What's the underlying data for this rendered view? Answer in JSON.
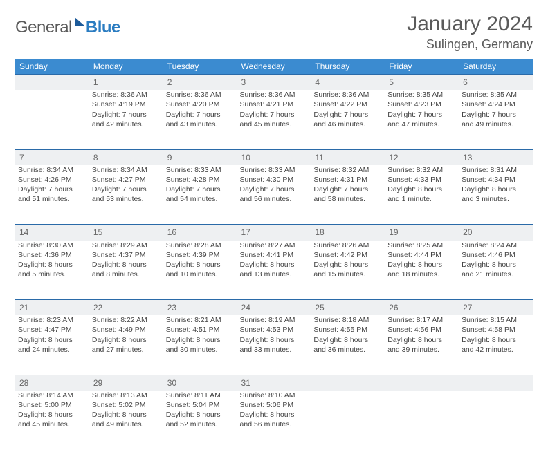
{
  "logo": {
    "general": "General",
    "blue": "Blue"
  },
  "title": "January 2024",
  "location": "Sulingen, Germany",
  "colors": {
    "header_bg": "#3b8bd0",
    "header_text": "#ffffff",
    "daynum_bg": "#eef0f2",
    "border": "#2a6aa8",
    "text": "#444444",
    "logo_gray": "#5a5a5a",
    "logo_blue": "#2a7cc1"
  },
  "weekdays": [
    "Sunday",
    "Monday",
    "Tuesday",
    "Wednesday",
    "Thursday",
    "Friday",
    "Saturday"
  ],
  "weeks": [
    {
      "nums": [
        "",
        "1",
        "2",
        "3",
        "4",
        "5",
        "6"
      ],
      "cells": [
        [],
        [
          "Sunrise: 8:36 AM",
          "Sunset: 4:19 PM",
          "Daylight: 7 hours",
          "and 42 minutes."
        ],
        [
          "Sunrise: 8:36 AM",
          "Sunset: 4:20 PM",
          "Daylight: 7 hours",
          "and 43 minutes."
        ],
        [
          "Sunrise: 8:36 AM",
          "Sunset: 4:21 PM",
          "Daylight: 7 hours",
          "and 45 minutes."
        ],
        [
          "Sunrise: 8:36 AM",
          "Sunset: 4:22 PM",
          "Daylight: 7 hours",
          "and 46 minutes."
        ],
        [
          "Sunrise: 8:35 AM",
          "Sunset: 4:23 PM",
          "Daylight: 7 hours",
          "and 47 minutes."
        ],
        [
          "Sunrise: 8:35 AM",
          "Sunset: 4:24 PM",
          "Daylight: 7 hours",
          "and 49 minutes."
        ]
      ]
    },
    {
      "nums": [
        "7",
        "8",
        "9",
        "10",
        "11",
        "12",
        "13"
      ],
      "cells": [
        [
          "Sunrise: 8:34 AM",
          "Sunset: 4:26 PM",
          "Daylight: 7 hours",
          "and 51 minutes."
        ],
        [
          "Sunrise: 8:34 AM",
          "Sunset: 4:27 PM",
          "Daylight: 7 hours",
          "and 53 minutes."
        ],
        [
          "Sunrise: 8:33 AM",
          "Sunset: 4:28 PM",
          "Daylight: 7 hours",
          "and 54 minutes."
        ],
        [
          "Sunrise: 8:33 AM",
          "Sunset: 4:30 PM",
          "Daylight: 7 hours",
          "and 56 minutes."
        ],
        [
          "Sunrise: 8:32 AM",
          "Sunset: 4:31 PM",
          "Daylight: 7 hours",
          "and 58 minutes."
        ],
        [
          "Sunrise: 8:32 AM",
          "Sunset: 4:33 PM",
          "Daylight: 8 hours",
          "and 1 minute."
        ],
        [
          "Sunrise: 8:31 AM",
          "Sunset: 4:34 PM",
          "Daylight: 8 hours",
          "and 3 minutes."
        ]
      ]
    },
    {
      "nums": [
        "14",
        "15",
        "16",
        "17",
        "18",
        "19",
        "20"
      ],
      "cells": [
        [
          "Sunrise: 8:30 AM",
          "Sunset: 4:36 PM",
          "Daylight: 8 hours",
          "and 5 minutes."
        ],
        [
          "Sunrise: 8:29 AM",
          "Sunset: 4:37 PM",
          "Daylight: 8 hours",
          "and 8 minutes."
        ],
        [
          "Sunrise: 8:28 AM",
          "Sunset: 4:39 PM",
          "Daylight: 8 hours",
          "and 10 minutes."
        ],
        [
          "Sunrise: 8:27 AM",
          "Sunset: 4:41 PM",
          "Daylight: 8 hours",
          "and 13 minutes."
        ],
        [
          "Sunrise: 8:26 AM",
          "Sunset: 4:42 PM",
          "Daylight: 8 hours",
          "and 15 minutes."
        ],
        [
          "Sunrise: 8:25 AM",
          "Sunset: 4:44 PM",
          "Daylight: 8 hours",
          "and 18 minutes."
        ],
        [
          "Sunrise: 8:24 AM",
          "Sunset: 4:46 PM",
          "Daylight: 8 hours",
          "and 21 minutes."
        ]
      ]
    },
    {
      "nums": [
        "21",
        "22",
        "23",
        "24",
        "25",
        "26",
        "27"
      ],
      "cells": [
        [
          "Sunrise: 8:23 AM",
          "Sunset: 4:47 PM",
          "Daylight: 8 hours",
          "and 24 minutes."
        ],
        [
          "Sunrise: 8:22 AM",
          "Sunset: 4:49 PM",
          "Daylight: 8 hours",
          "and 27 minutes."
        ],
        [
          "Sunrise: 8:21 AM",
          "Sunset: 4:51 PM",
          "Daylight: 8 hours",
          "and 30 minutes."
        ],
        [
          "Sunrise: 8:19 AM",
          "Sunset: 4:53 PM",
          "Daylight: 8 hours",
          "and 33 minutes."
        ],
        [
          "Sunrise: 8:18 AM",
          "Sunset: 4:55 PM",
          "Daylight: 8 hours",
          "and 36 minutes."
        ],
        [
          "Sunrise: 8:17 AM",
          "Sunset: 4:56 PM",
          "Daylight: 8 hours",
          "and 39 minutes."
        ],
        [
          "Sunrise: 8:15 AM",
          "Sunset: 4:58 PM",
          "Daylight: 8 hours",
          "and 42 minutes."
        ]
      ]
    },
    {
      "nums": [
        "28",
        "29",
        "30",
        "31",
        "",
        "",
        ""
      ],
      "cells": [
        [
          "Sunrise: 8:14 AM",
          "Sunset: 5:00 PM",
          "Daylight: 8 hours",
          "and 45 minutes."
        ],
        [
          "Sunrise: 8:13 AM",
          "Sunset: 5:02 PM",
          "Daylight: 8 hours",
          "and 49 minutes."
        ],
        [
          "Sunrise: 8:11 AM",
          "Sunset: 5:04 PM",
          "Daylight: 8 hours",
          "and 52 minutes."
        ],
        [
          "Sunrise: 8:10 AM",
          "Sunset: 5:06 PM",
          "Daylight: 8 hours",
          "and 56 minutes."
        ],
        [],
        [],
        []
      ]
    }
  ]
}
